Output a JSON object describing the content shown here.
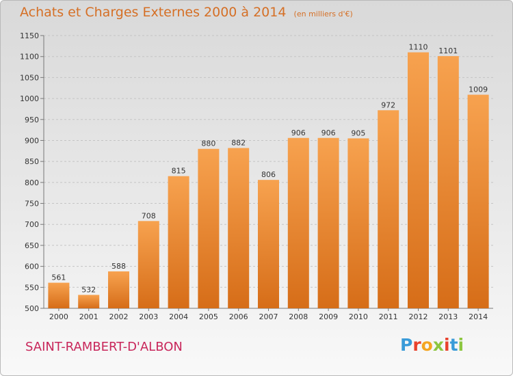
{
  "chart_data": {
    "type": "bar",
    "title": "Achats et Charges Externes 2000 à 2014",
    "subtitle": "(en milliers d'€)",
    "categories": [
      "2000",
      "2001",
      "2002",
      "2003",
      "2004",
      "2005",
      "2006",
      "2007",
      "2008",
      "2009",
      "2010",
      "2011",
      "2012",
      "2013",
      "2014"
    ],
    "values": [
      561,
      532,
      588,
      708,
      815,
      880,
      882,
      806,
      906,
      906,
      905,
      972,
      1110,
      1101,
      1009
    ],
    "ylim": [
      500,
      1150
    ],
    "yticks": [
      500,
      550,
      600,
      650,
      700,
      750,
      800,
      850,
      900,
      950,
      1000,
      1050,
      1100,
      1150
    ],
    "grid": true,
    "bar_color": "#f08c30",
    "xlabel": "",
    "ylabel": ""
  },
  "location": "SAINT-RAMBERT-D'ALBON",
  "logo": {
    "text": "Proxiti",
    "letter_colors": [
      "#3a9bd8",
      "#e8412c",
      "#f4a521",
      "#8cc63f",
      "#e8412c",
      "#3a9bd8",
      "#8cc63f"
    ]
  },
  "colors": {
    "title": "#d56f25",
    "location": "#c8265a"
  }
}
